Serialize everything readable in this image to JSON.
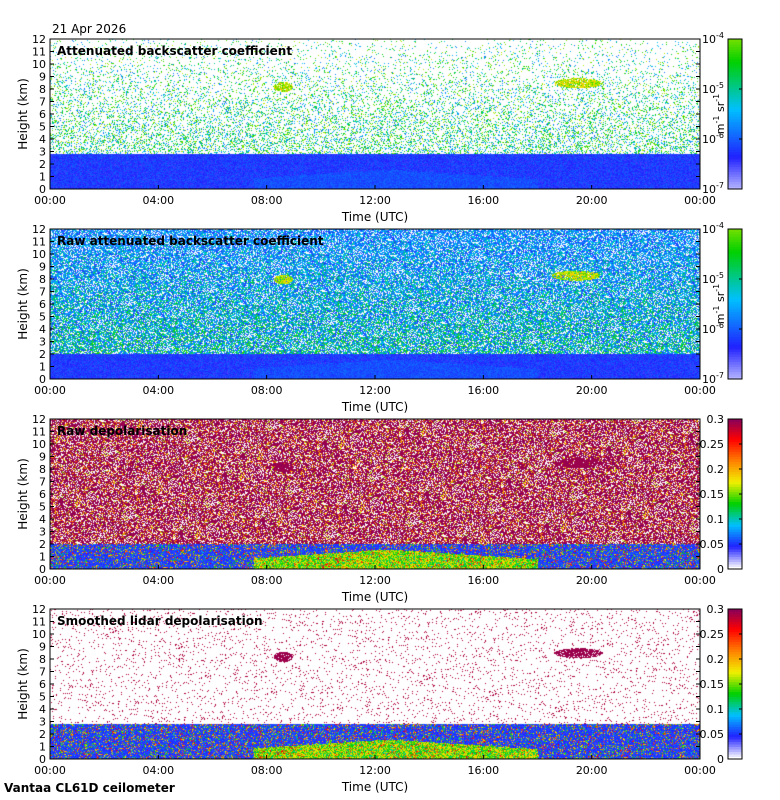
{
  "header": {
    "date": "21 Apr 2026"
  },
  "footer": {
    "site": "Vantaa CL61D ceilometer"
  },
  "chart_data": [
    {
      "type": "heatmap",
      "title": "Attenuated backscatter coefficient",
      "xlabel": "Time (UTC)",
      "ylabel": "Height (km)",
      "xticks": [
        "00:00",
        "04:00",
        "08:00",
        "12:00",
        "16:00",
        "20:00",
        "00:00"
      ],
      "yticks": [
        "0",
        "1",
        "2",
        "3",
        "4",
        "5",
        "6",
        "7",
        "8",
        "9",
        "10",
        "11",
        "12"
      ],
      "ylim": [
        0,
        12
      ],
      "xlim_hours": [
        0,
        24
      ],
      "scale": "log",
      "colorbar": {
        "ticks": [
          "10",
          "10",
          "10",
          "10"
        ],
        "exponents": [
          "-7",
          "-6",
          "-5",
          "-4"
        ],
        "label": "m",
        "label_exp1": "-1",
        "label_mid": " sr",
        "label_exp2": "-1"
      },
      "features": {
        "boundary_layer_top_km": 2.8,
        "cloud_events": [
          {
            "t_hours": 8.6,
            "z_km": 8.2
          },
          {
            "t_hours": 19.5,
            "z_km": 8.5
          }
        ]
      }
    },
    {
      "type": "heatmap",
      "title": "Raw attenuated backscatter coefficient",
      "xlabel": "Time (UTC)",
      "ylabel": "Height (km)",
      "xticks": [
        "00:00",
        "04:00",
        "08:00",
        "12:00",
        "16:00",
        "20:00",
        "00:00"
      ],
      "yticks": [
        "0",
        "1",
        "2",
        "3",
        "4",
        "5",
        "6",
        "7",
        "8",
        "9",
        "10",
        "11",
        "12"
      ],
      "ylim": [
        0,
        12
      ],
      "xlim_hours": [
        0,
        24
      ],
      "scale": "log",
      "colorbar": {
        "ticks": [
          "10",
          "10",
          "10",
          "10"
        ],
        "exponents": [
          "-7",
          "-6",
          "-5",
          "-4"
        ],
        "label": "m",
        "label_exp1": "-1",
        "label_mid": " sr",
        "label_exp2": "-1"
      },
      "features": {
        "boundary_layer_top_km": 2.0,
        "cloud_events": [
          {
            "t_hours": 8.6,
            "z_km": 8.0
          },
          {
            "t_hours": 19.4,
            "z_km": 8.3
          }
        ]
      }
    },
    {
      "type": "heatmap",
      "title": "Raw depolarisation",
      "xlabel": "Time (UTC)",
      "ylabel": "Height (km)",
      "xticks": [
        "00:00",
        "04:00",
        "08:00",
        "12:00",
        "16:00",
        "20:00",
        "00:00"
      ],
      "yticks": [
        "0",
        "1",
        "2",
        "3",
        "4",
        "5",
        "6",
        "7",
        "8",
        "9",
        "10",
        "11",
        "12"
      ],
      "ylim": [
        0,
        12
      ],
      "xlim_hours": [
        0,
        24
      ],
      "scale": "linear",
      "colorbar": {
        "ticks": [
          "0",
          "0.05",
          "0.1",
          "0.15",
          "0.2",
          "0.25",
          "0.3"
        ],
        "range": [
          0,
          0.3
        ]
      },
      "features": {
        "boundary_layer_top_km": 2.0,
        "cloud_events": [
          {
            "t_hours": 8.6,
            "z_km": 8.2
          },
          {
            "t_hours": 19.5,
            "z_km": 8.5
          }
        ]
      }
    },
    {
      "type": "heatmap",
      "title": "Smoothed lidar depolarisation",
      "xlabel": "Time (UTC)",
      "ylabel": "Height (km)",
      "xticks": [
        "00:00",
        "04:00",
        "08:00",
        "12:00",
        "16:00",
        "20:00",
        "00:00"
      ],
      "yticks": [
        "0",
        "1",
        "2",
        "3",
        "4",
        "5",
        "6",
        "7",
        "8",
        "9",
        "10",
        "11",
        "12"
      ],
      "ylim": [
        0,
        12
      ],
      "xlim_hours": [
        0,
        24
      ],
      "scale": "linear",
      "colorbar": {
        "ticks": [
          "0",
          "0.05",
          "0.1",
          "0.15",
          "0.2",
          "0.25",
          "0.3"
        ],
        "range": [
          0,
          0.3
        ]
      },
      "features": {
        "boundary_layer_top_km": 2.8,
        "cloud_events": [
          {
            "t_hours": 8.6,
            "z_km": 8.2
          },
          {
            "t_hours": 19.5,
            "z_km": 8.5
          }
        ]
      }
    }
  ],
  "colors": {
    "cmap": [
      "#ffffff",
      "#2020ff",
      "#00c0ff",
      "#00d000",
      "#f0f000",
      "#ff8000",
      "#ff0000",
      "#800060"
    ]
  }
}
